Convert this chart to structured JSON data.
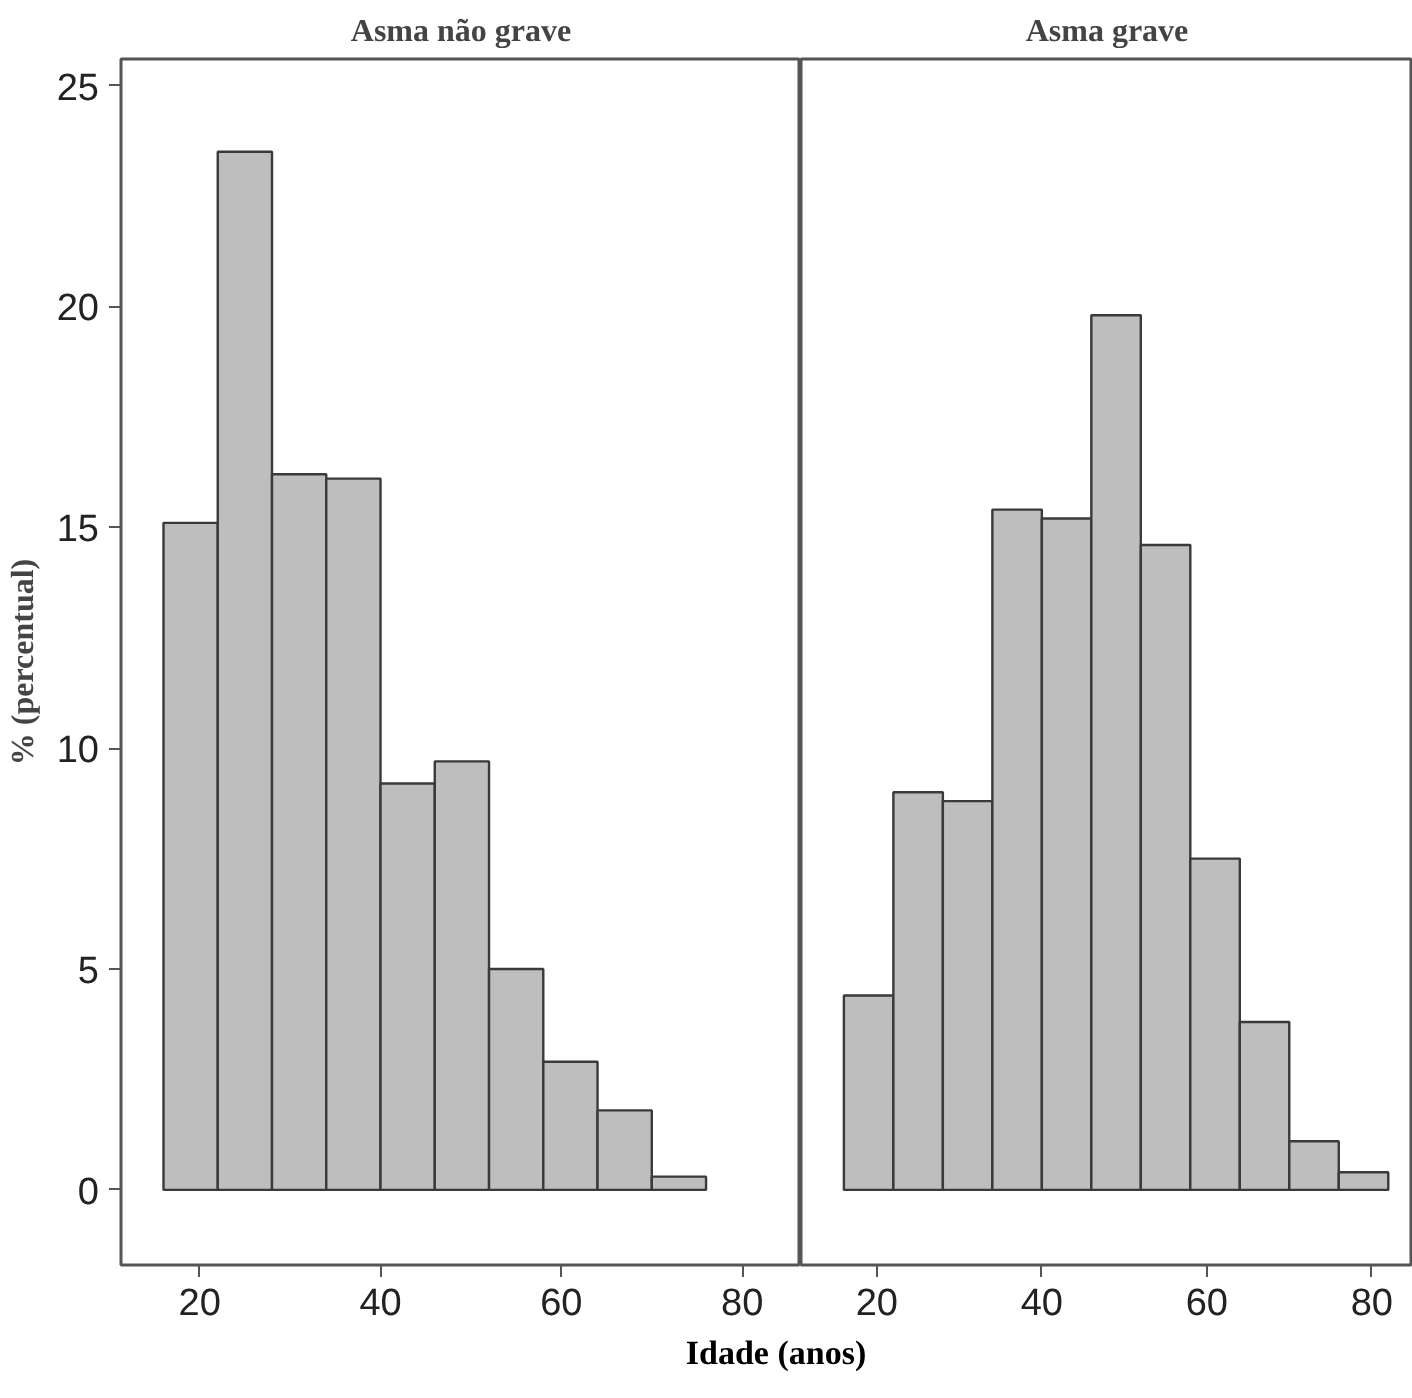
{
  "chart_data": [
    {
      "type": "histogram",
      "title": "Asma não grave",
      "ylabel": "% (percentual)",
      "xlabel": "Idade (anos)",
      "color": "#bebebe",
      "bins": [
        16,
        22,
        28,
        34,
        40,
        46,
        52,
        58,
        64,
        70,
        76
      ],
      "values": [
        15.1,
        23.5,
        16.2,
        16.1,
        9.2,
        9.7,
        5.0,
        2.9,
        1.8,
        0.3
      ],
      "xlim": [
        11.3,
        86.5
      ],
      "ylim": [
        -1.7,
        25.6
      ],
      "xticks": [
        20,
        40,
        60,
        80
      ],
      "yticks": [
        0,
        5,
        10,
        15,
        20,
        25
      ]
    },
    {
      "type": "histogram",
      "title": "Asma grave",
      "color": "#bebebe",
      "bins": [
        16,
        22,
        28,
        34,
        40,
        46,
        52,
        58,
        64,
        70,
        76,
        82
      ],
      "values": [
        4.4,
        9.0,
        8.8,
        15.4,
        15.2,
        19.8,
        14.6,
        7.5,
        3.8,
        1.1,
        0.4
      ],
      "xlim": [
        10.8,
        85
      ],
      "ylim": [
        -1.7,
        25.6
      ],
      "xticks": [
        20,
        40,
        60,
        80
      ],
      "yticks": [
        0,
        5,
        10,
        15,
        20,
        25
      ],
      "tick_labels": "x"
    }
  ]
}
